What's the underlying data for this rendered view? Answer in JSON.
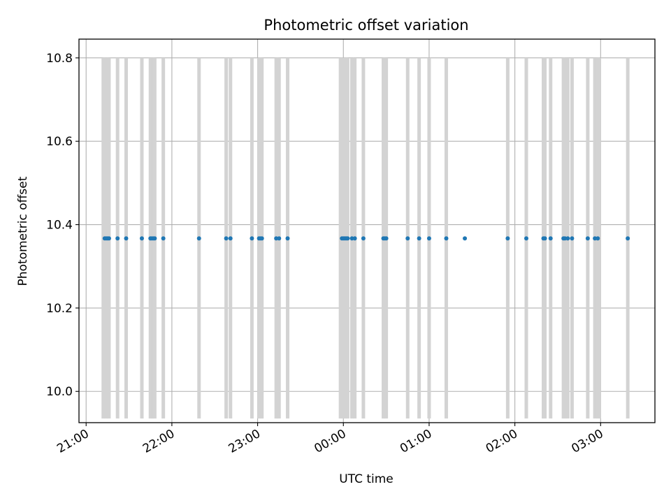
{
  "chart_data": {
    "type": "scatter",
    "title": "Photometric offset variation",
    "xlabel": "UTC time",
    "ylabel": "Photometric offset",
    "x_axis": "time",
    "xlim": [
      "20:55",
      "03:38"
    ],
    "xticks": [
      "21:00",
      "22:00",
      "23:00",
      "00:00",
      "01:00",
      "02:00",
      "03:00"
    ],
    "ylim": [
      9.925,
      10.845
    ],
    "yticks": [
      "10.0",
      "10.2",
      "10.4",
      "10.6",
      "10.8"
    ],
    "grid": true,
    "colors": {
      "points": "#1f77b4",
      "bars": "#d3d3d3",
      "grid": "#b0b0b0"
    },
    "series": [
      {
        "marker": "point",
        "y": 10.367,
        "x": [
          "21:13",
          "21:14",
          "21:15",
          "21:16",
          "21:22",
          "21:28",
          "21:39",
          "21:45",
          "21:46",
          "21:47",
          "21:48",
          "21:54",
          "22:19",
          "22:38",
          "22:41",
          "22:56",
          "23:01",
          "23:02",
          "23:03",
          "23:13",
          "23:15",
          "23:21",
          "23:59",
          "00:00",
          "00:01",
          "00:02",
          "00:03",
          "00:06",
          "00:08",
          "00:14",
          "00:28",
          "00:29",
          "00:30",
          "00:45",
          "00:53",
          "01:00",
          "01:12",
          "01:25",
          "01:55",
          "02:08",
          "02:20",
          "02:21",
          "02:25",
          "02:34",
          "02:35",
          "02:37",
          "02:40",
          "02:51",
          "02:56",
          "02:58",
          "03:19"
        ]
      },
      {
        "marker": "vertical-band",
        "y_range": [
          9.935,
          10.8
        ],
        "x": [
          "21:12",
          "21:13",
          "21:14",
          "21:15",
          "21:16",
          "21:22",
          "21:28",
          "21:39",
          "21:45",
          "21:46",
          "21:47",
          "21:48",
          "21:54",
          "22:19",
          "22:38",
          "22:41",
          "22:56",
          "23:01",
          "23:02",
          "23:03",
          "23:13",
          "23:14",
          "23:15",
          "23:21",
          "23:58",
          "23:59",
          "00:00",
          "00:01",
          "00:02",
          "00:03",
          "00:06",
          "00:08",
          "00:14",
          "00:28",
          "00:29",
          "00:30",
          "00:45",
          "00:53",
          "01:00",
          "01:12",
          "01:55",
          "02:08",
          "02:20",
          "02:21",
          "02:25",
          "02:34",
          "02:35",
          "02:37",
          "02:40",
          "02:51",
          "02:56",
          "02:58",
          "02:59",
          "03:19"
        ]
      }
    ]
  }
}
